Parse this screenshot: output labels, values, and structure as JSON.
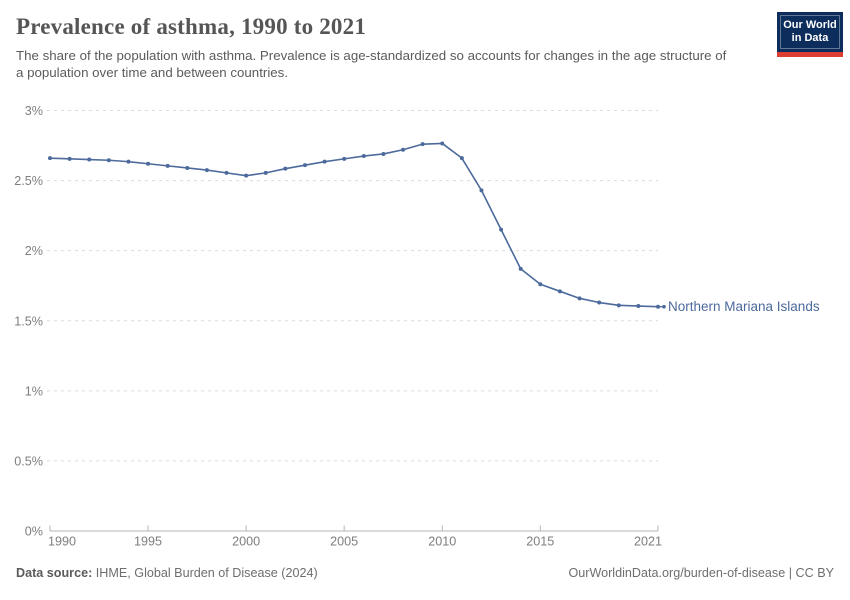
{
  "logo": {
    "line1": "Our World",
    "line2": "in Data",
    "bg_color": "#0d2e5c",
    "accent_color": "#dc3e32"
  },
  "chart_data": {
    "type": "line",
    "title": "Prevalence of asthma, 1990 to 2021",
    "subtitle": "The share of the population with asthma. Prevalence is age-standardized so accounts for changes in the age structure of a population over time and between countries.",
    "x": [
      1990,
      1991,
      1992,
      1993,
      1994,
      1995,
      1996,
      1997,
      1998,
      1999,
      2000,
      2001,
      2002,
      2003,
      2004,
      2005,
      2006,
      2007,
      2008,
      2009,
      2010,
      2011,
      2012,
      2013,
      2014,
      2015,
      2016,
      2017,
      2018,
      2019,
      2020,
      2021
    ],
    "series": [
      {
        "name": "Northern Mariana Islands",
        "color": "#4C6A9C",
        "values": [
          2.66,
          2.655,
          2.65,
          2.645,
          2.635,
          2.62,
          2.605,
          2.59,
          2.575,
          2.555,
          2.535,
          2.555,
          2.585,
          2.61,
          2.635,
          2.655,
          2.675,
          2.69,
          2.72,
          2.76,
          2.765,
          2.66,
          2.43,
          2.15,
          1.87,
          1.76,
          1.71,
          1.66,
          1.63,
          1.61,
          1.605,
          1.6
        ]
      }
    ],
    "xlim": [
      1990,
      2021
    ],
    "ylim": [
      0,
      3
    ],
    "x_ticks": [
      1990,
      1995,
      2000,
      2005,
      2010,
      2015,
      2021
    ],
    "y_ticks": [
      0,
      0.5,
      1,
      1.5,
      2,
      2.5,
      3
    ],
    "y_unit": "%",
    "grid": "horizontal-dashed",
    "legend": "end-of-line-label",
    "grid_color": "#dcdcdc",
    "axis_color": "#b5b5b5"
  },
  "footer": {
    "source_label": "Data source:",
    "source_value": "IHME, Global Burden of Disease (2024)",
    "credit_link": "OurWorldinData.org/burden-of-disease",
    "credit_suffix": " | CC BY"
  }
}
